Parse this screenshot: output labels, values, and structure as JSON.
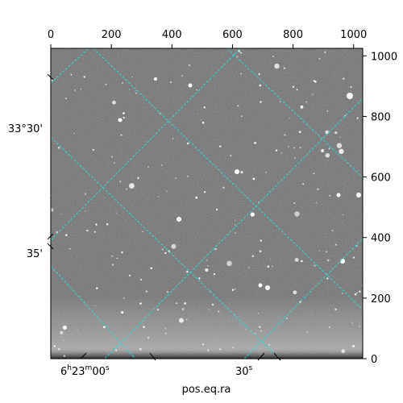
{
  "figure": {
    "xlabel": "pos.eq.ra",
    "top_axis_ticks": [
      "0",
      "200",
      "400",
      "600",
      "800",
      "1000"
    ],
    "right_axis_ticks": [
      "0",
      "200",
      "400",
      "600",
      "800",
      "1000"
    ],
    "left_axis_labels": [
      "33°30'",
      "35'"
    ],
    "bottom_axis_labels": [
      {
        "hours": "6",
        "minutes": "23",
        "seconds": "00",
        "h": "h",
        "m": "m",
        "s": "s"
      },
      {
        "text": "30",
        "s": "s"
      }
    ],
    "colors": {
      "grid": "#33d6d6",
      "frame": "#000000",
      "sky_background": "#6e6e6e"
    }
  }
}
